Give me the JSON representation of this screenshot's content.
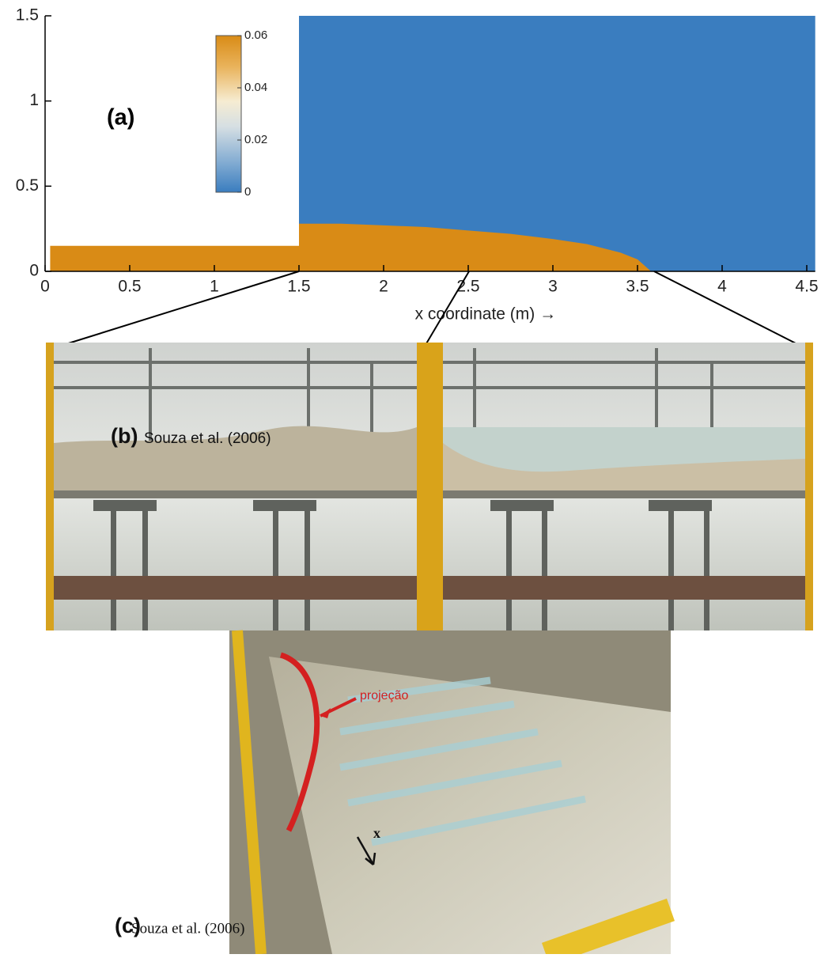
{
  "chart_data": {
    "type": "area",
    "xlabel": "x coordinate (m) →",
    "annotation": "(a)",
    "x": [
      0.03,
      1.5,
      1.5,
      1.75,
      2.0,
      2.25,
      2.5,
      2.75,
      3.0,
      3.2,
      3.4,
      3.5,
      3.58
    ],
    "values": [
      0.15,
      0.15,
      0.28,
      0.28,
      0.27,
      0.26,
      0.24,
      0.22,
      0.19,
      0.16,
      0.11,
      0.07,
      0
    ],
    "color": "#d98b16",
    "water_x": [
      1.5,
      4.55
    ],
    "water_top": 1.5,
    "water_color": "#3a7dbf",
    "xlim": [
      0,
      4.55
    ],
    "ylim": [
      0,
      1.5
    ],
    "xticks": [
      0,
      0.5,
      1,
      1.5,
      2,
      2.5,
      3,
      3.5,
      4,
      4.5
    ],
    "yticks": [
      0,
      0.5,
      1,
      1.5
    ],
    "colorbar": {
      "lim": [
        0,
        0.06
      ],
      "ticks": [
        0,
        0.02,
        0.04,
        0.06
      ]
    }
  },
  "photos": [
    {
      "label": "(b)",
      "caption": "Souza et al. (2006)"
    },
    {
      "label": "(c)",
      "caption": "Souza et al. (2006)",
      "arrow_text": "projeção",
      "axis_text": "x"
    }
  ]
}
